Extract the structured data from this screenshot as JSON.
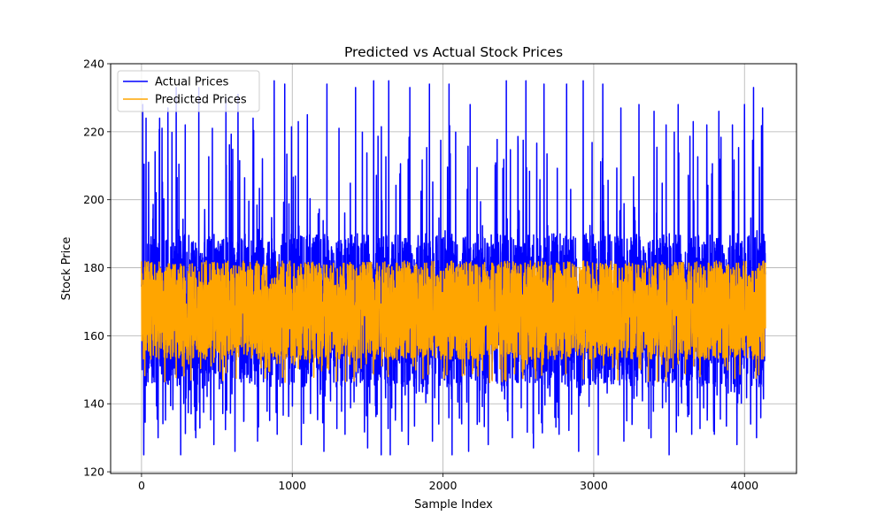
{
  "chart_data": {
    "type": "line",
    "title": "Predicted vs Actual Stock Prices",
    "xlabel": "Sample Index",
    "ylabel": "Stock Price",
    "xlim": [
      -205,
      4345
    ],
    "ylim": [
      119.5,
      240
    ],
    "xticks": [
      0,
      1000,
      2000,
      3000,
      4000
    ],
    "yticks": [
      120,
      140,
      160,
      180,
      200,
      220,
      240
    ],
    "grid": true,
    "legend_position": "top-left",
    "n_samples": 4140,
    "series": [
      {
        "name": "Actual Prices",
        "color": "#0000ff",
        "typical_range": [
          145,
          190
        ],
        "observed_min": 125,
        "observed_max": 235,
        "spike_peaks": [
          {
            "x": 8,
            "y": 228
          },
          {
            "x": 30,
            "y": 224
          },
          {
            "x": 120,
            "y": 224
          },
          {
            "x": 175,
            "y": 227
          },
          {
            "x": 230,
            "y": 233
          },
          {
            "x": 290,
            "y": 222
          },
          {
            "x": 380,
            "y": 233
          },
          {
            "x": 470,
            "y": 221
          },
          {
            "x": 560,
            "y": 230
          },
          {
            "x": 640,
            "y": 231
          },
          {
            "x": 740,
            "y": 224
          },
          {
            "x": 880,
            "y": 235
          },
          {
            "x": 950,
            "y": 234
          },
          {
            "x": 1040,
            "y": 223
          },
          {
            "x": 1100,
            "y": 225
          },
          {
            "x": 1230,
            "y": 234
          },
          {
            "x": 1310,
            "y": 221
          },
          {
            "x": 1420,
            "y": 233
          },
          {
            "x": 1540,
            "y": 235
          },
          {
            "x": 1640,
            "y": 235
          },
          {
            "x": 1780,
            "y": 233
          },
          {
            "x": 1910,
            "y": 234
          },
          {
            "x": 2040,
            "y": 234
          },
          {
            "x": 2180,
            "y": 228
          },
          {
            "x": 2300,
            "y": 225
          },
          {
            "x": 2420,
            "y": 235
          },
          {
            "x": 2550,
            "y": 235
          },
          {
            "x": 2670,
            "y": 234
          },
          {
            "x": 2820,
            "y": 234
          },
          {
            "x": 2930,
            "y": 235
          },
          {
            "x": 3060,
            "y": 234
          },
          {
            "x": 3180,
            "y": 227
          },
          {
            "x": 3300,
            "y": 228
          },
          {
            "x": 3400,
            "y": 226
          },
          {
            "x": 3480,
            "y": 222
          },
          {
            "x": 3560,
            "y": 228
          },
          {
            "x": 3660,
            "y": 223
          },
          {
            "x": 3750,
            "y": 222
          },
          {
            "x": 3830,
            "y": 226
          },
          {
            "x": 3920,
            "y": 222
          },
          {
            "x": 4000,
            "y": 228
          },
          {
            "x": 4060,
            "y": 233
          },
          {
            "x": 4120,
            "y": 227
          }
        ],
        "dip_troughs": [
          {
            "x": 15,
            "y": 125
          },
          {
            "x": 110,
            "y": 130
          },
          {
            "x": 260,
            "y": 125
          },
          {
            "x": 360,
            "y": 130
          },
          {
            "x": 480,
            "y": 128
          },
          {
            "x": 620,
            "y": 126
          },
          {
            "x": 770,
            "y": 129
          },
          {
            "x": 900,
            "y": 131
          },
          {
            "x": 1060,
            "y": 128
          },
          {
            "x": 1210,
            "y": 126
          },
          {
            "x": 1350,
            "y": 131
          },
          {
            "x": 1500,
            "y": 127
          },
          {
            "x": 1590,
            "y": 125
          },
          {
            "x": 1650,
            "y": 125
          },
          {
            "x": 1770,
            "y": 128
          },
          {
            "x": 1930,
            "y": 129
          },
          {
            "x": 2060,
            "y": 125
          },
          {
            "x": 2170,
            "y": 126
          },
          {
            "x": 2300,
            "y": 128
          },
          {
            "x": 2460,
            "y": 130
          },
          {
            "x": 2600,
            "y": 127
          },
          {
            "x": 2770,
            "y": 131
          },
          {
            "x": 2900,
            "y": 126
          },
          {
            "x": 3030,
            "y": 125
          },
          {
            "x": 3200,
            "y": 129
          },
          {
            "x": 3380,
            "y": 130
          },
          {
            "x": 3500,
            "y": 125
          },
          {
            "x": 3650,
            "y": 131
          },
          {
            "x": 3800,
            "y": 131
          },
          {
            "x": 3950,
            "y": 128
          },
          {
            "x": 4080,
            "y": 130
          }
        ]
      },
      {
        "name": "Predicted Prices",
        "color": "#ffa500",
        "typical_range": [
          153,
          182
        ],
        "observed_min": 146,
        "observed_max": 183
      }
    ]
  }
}
